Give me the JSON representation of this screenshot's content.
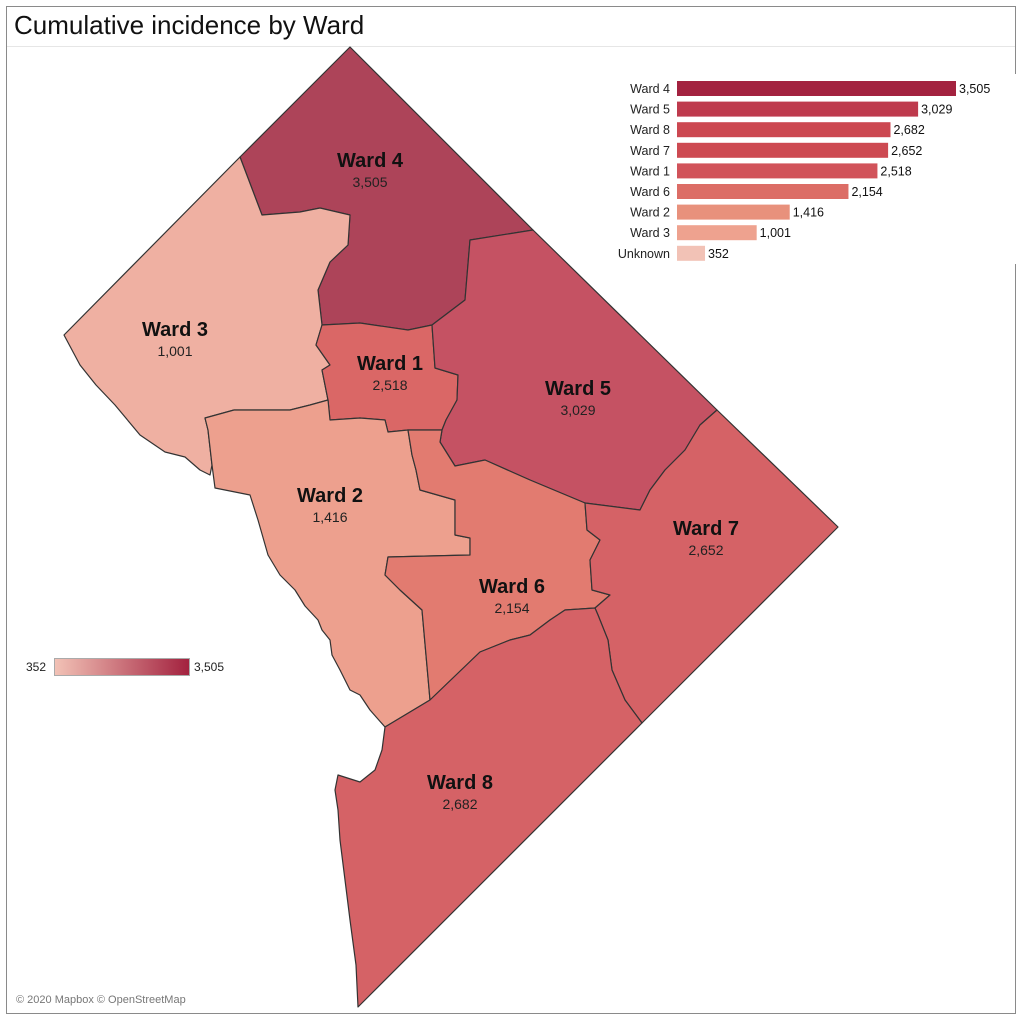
{
  "title": "Cumulative incidence by Ward",
  "attribution": "© 2020 Mapbox © OpenStreetMap",
  "legend": {
    "min_label": "352",
    "max_label": "3,505",
    "color_low": "#f2c2b6",
    "color_high": "#a3223f"
  },
  "wards": [
    {
      "name": "Ward 4",
      "value_label": "3,505",
      "value": 3505,
      "color": "#ad4459"
    },
    {
      "name": "Ward 3",
      "value_label": "1,001",
      "value": 1001,
      "color": "#efb0a2"
    },
    {
      "name": "Ward 1",
      "value_label": "2,518",
      "value": 2518,
      "color": "#da6766"
    },
    {
      "name": "Ward 5",
      "value_label": "3,029",
      "value": 3029,
      "color": "#c55263"
    },
    {
      "name": "Ward 2",
      "value_label": "1,416",
      "value": 1416,
      "color": "#eda08e"
    },
    {
      "name": "Ward 6",
      "value_label": "2,154",
      "value": 2154,
      "color": "#e27b70"
    },
    {
      "name": "Ward 7",
      "value_label": "2,652",
      "value": 2652,
      "color": "#d56266"
    },
    {
      "name": "Ward 8",
      "value_label": "2,682",
      "value": 2682,
      "color": "#d56266"
    }
  ],
  "chart_data": {
    "type": "bar",
    "orientation": "horizontal",
    "categories": [
      "Ward 4",
      "Ward 5",
      "Ward 8",
      "Ward 7",
      "Ward 1",
      "Ward 6",
      "Ward 2",
      "Ward 3",
      "Unknown"
    ],
    "values": [
      3505,
      3029,
      2682,
      2652,
      2518,
      2154,
      1416,
      1001,
      352
    ],
    "value_labels": [
      "3,505",
      "3,029",
      "2,682",
      "2,652",
      "2,518",
      "2,154",
      "1,416",
      "1,001",
      "352"
    ],
    "colors": [
      "#a3223f",
      "#be3a4d",
      "#cc4851",
      "#cd4a52",
      "#d1535a",
      "#dc6d66",
      "#e8917c",
      "#eea28f",
      "#f2c2b6"
    ],
    "xlim": [
      0,
      3505
    ]
  }
}
